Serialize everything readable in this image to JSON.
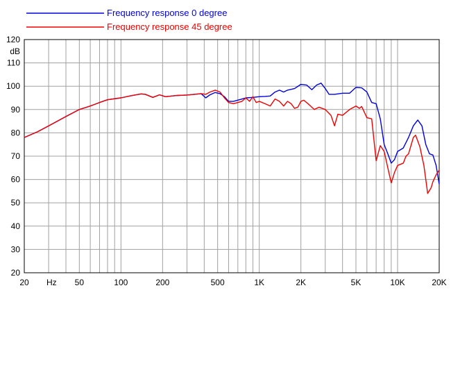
{
  "chart_data": {
    "type": "line",
    "x_scale": "log",
    "xlim": [
      20,
      20000
    ],
    "ylim": [
      20,
      120
    ],
    "y_unit_label": "dB",
    "x_unit_label": "Hz",
    "grid": true,
    "legend_position": "top-left",
    "x_ticks": [
      {
        "value": 20,
        "label": "20"
      },
      {
        "value": 50,
        "label": "50"
      },
      {
        "value": 100,
        "label": "100"
      },
      {
        "value": 200,
        "label": "200"
      },
      {
        "value": 500,
        "label": "500"
      },
      {
        "value": 1000,
        "label": "1K"
      },
      {
        "value": 2000,
        "label": "2K"
      },
      {
        "value": 5000,
        "label": "5K"
      },
      {
        "value": 10000,
        "label": "10K"
      },
      {
        "value": 20000,
        "label": "20K"
      }
    ],
    "y_ticks": [
      20,
      30,
      40,
      50,
      60,
      70,
      80,
      90,
      100,
      110,
      120
    ],
    "series": [
      {
        "name": "Frequency response 0 degree",
        "color": "#0000dd",
        "points": [
          [
            20,
            78
          ],
          [
            25,
            80.5
          ],
          [
            30,
            83
          ],
          [
            40,
            87
          ],
          [
            50,
            90
          ],
          [
            60,
            91.5
          ],
          [
            70,
            93
          ],
          [
            80,
            94.2
          ],
          [
            100,
            95
          ],
          [
            120,
            96
          ],
          [
            140,
            96.7
          ],
          [
            150,
            96.5
          ],
          [
            170,
            95.2
          ],
          [
            190,
            96.3
          ],
          [
            210,
            95.5
          ],
          [
            250,
            96
          ],
          [
            300,
            96.2
          ],
          [
            340,
            96.5
          ],
          [
            380,
            96.8
          ],
          [
            410,
            95
          ],
          [
            440,
            96.3
          ],
          [
            480,
            97.3
          ],
          [
            520,
            96.8
          ],
          [
            560,
            95.5
          ],
          [
            600,
            93.5
          ],
          [
            650,
            93.5
          ],
          [
            700,
            94
          ],
          [
            750,
            94.5
          ],
          [
            800,
            95
          ],
          [
            900,
            95.2
          ],
          [
            1000,
            95.5
          ],
          [
            1100,
            95.6
          ],
          [
            1200,
            95.8
          ],
          [
            1300,
            97.5
          ],
          [
            1400,
            98.3
          ],
          [
            1500,
            97.5
          ],
          [
            1600,
            98.3
          ],
          [
            1800,
            99
          ],
          [
            2000,
            100.8
          ],
          [
            2200,
            100.5
          ],
          [
            2400,
            98.5
          ],
          [
            2600,
            100.5
          ],
          [
            2800,
            101.3
          ],
          [
            3000,
            99
          ],
          [
            3200,
            96.5
          ],
          [
            3500,
            96.5
          ],
          [
            4000,
            97
          ],
          [
            4500,
            97
          ],
          [
            5000,
            99.5
          ],
          [
            5500,
            99.3
          ],
          [
            6000,
            97.5
          ],
          [
            6500,
            93
          ],
          [
            7000,
            92.5
          ],
          [
            7500,
            86
          ],
          [
            8000,
            75
          ],
          [
            8500,
            71
          ],
          [
            9000,
            67
          ],
          [
            9500,
            68.5
          ],
          [
            10000,
            72
          ],
          [
            11000,
            73.5
          ],
          [
            12000,
            78
          ],
          [
            13000,
            83
          ],
          [
            14000,
            85.5
          ],
          [
            15000,
            83
          ],
          [
            16000,
            75
          ],
          [
            17000,
            71
          ],
          [
            18000,
            70.5
          ],
          [
            19000,
            66
          ],
          [
            20000,
            58
          ]
        ]
      },
      {
        "name": "Frequency response 45 degree",
        "color": "#ee0000",
        "points": [
          [
            20,
            78
          ],
          [
            25,
            80.5
          ],
          [
            30,
            83
          ],
          [
            40,
            87
          ],
          [
            50,
            90
          ],
          [
            60,
            91.5
          ],
          [
            70,
            93
          ],
          [
            80,
            94.2
          ],
          [
            100,
            95
          ],
          [
            120,
            96
          ],
          [
            140,
            96.7
          ],
          [
            150,
            96.5
          ],
          [
            170,
            95.2
          ],
          [
            190,
            96.3
          ],
          [
            210,
            95.5
          ],
          [
            250,
            96
          ],
          [
            300,
            96.2
          ],
          [
            340,
            96.5
          ],
          [
            380,
            96.8
          ],
          [
            410,
            96.5
          ],
          [
            440,
            97.5
          ],
          [
            480,
            98.3
          ],
          [
            520,
            97.5
          ],
          [
            560,
            95
          ],
          [
            600,
            93
          ],
          [
            650,
            92.5
          ],
          [
            700,
            93
          ],
          [
            750,
            93.5
          ],
          [
            800,
            95
          ],
          [
            850,
            93.5
          ],
          [
            900,
            95.5
          ],
          [
            950,
            93
          ],
          [
            1000,
            93.5
          ],
          [
            1100,
            92.5
          ],
          [
            1200,
            91.5
          ],
          [
            1300,
            94.5
          ],
          [
            1400,
            93.5
          ],
          [
            1500,
            91.5
          ],
          [
            1600,
            93.5
          ],
          [
            1700,
            92.5
          ],
          [
            1800,
            90.5
          ],
          [
            1900,
            91
          ],
          [
            2000,
            93.5
          ],
          [
            2100,
            94
          ],
          [
            2300,
            92
          ],
          [
            2500,
            90
          ],
          [
            2700,
            91
          ],
          [
            3000,
            90
          ],
          [
            3300,
            87.5
          ],
          [
            3500,
            83
          ],
          [
            3700,
            88
          ],
          [
            4000,
            87.5
          ],
          [
            4500,
            90
          ],
          [
            5000,
            91.5
          ],
          [
            5300,
            90.5
          ],
          [
            5500,
            91.3
          ],
          [
            6000,
            86.5
          ],
          [
            6500,
            86
          ],
          [
            7000,
            68
          ],
          [
            7500,
            74.5
          ],
          [
            8000,
            72
          ],
          [
            8500,
            65
          ],
          [
            9000,
            58.5
          ],
          [
            9500,
            63
          ],
          [
            10000,
            66
          ],
          [
            11000,
            67
          ],
          [
            11500,
            70
          ],
          [
            12000,
            71
          ],
          [
            13000,
            78
          ],
          [
            13500,
            79
          ],
          [
            14500,
            74
          ],
          [
            15500,
            66
          ],
          [
            16000,
            60
          ],
          [
            16500,
            54
          ],
          [
            17500,
            56.5
          ],
          [
            18000,
            59
          ],
          [
            19000,
            62
          ],
          [
            20000,
            64
          ]
        ]
      }
    ]
  }
}
